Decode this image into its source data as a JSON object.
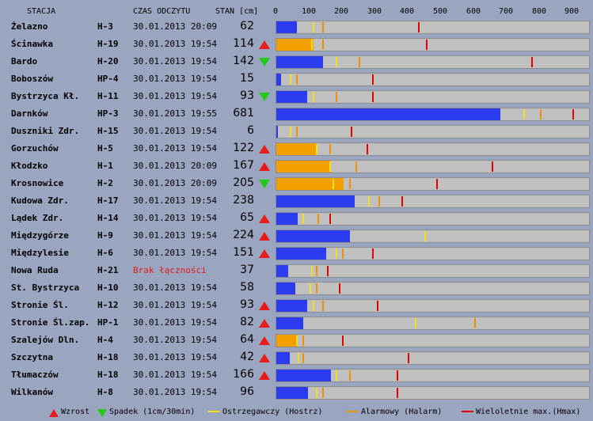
{
  "header": {
    "station": "STACJA",
    "read_time": "CZAS ODCZYTU",
    "level": "STAN [cm]",
    "scale_ticks": [
      0,
      100,
      200,
      300,
      400,
      500,
      600,
      700,
      800,
      900
    ]
  },
  "scale_max": 940,
  "colors": {
    "normal": "#2b3cf0",
    "warning_fill": "#f2a000",
    "warning_marker": "#f0e020",
    "alarm_marker": "#f09000",
    "max_marker": "#e00000",
    "rise": "#e81c1c",
    "fall": "#22c81a"
  },
  "stations": [
    {
      "name": "Żelazno",
      "code": "H-3",
      "time": "30.01.2013 20:09",
      "level": 62,
      "trend": "none",
      "warn": 110,
      "alarm": 140,
      "max": 430,
      "state": "normal"
    },
    {
      "name": "Ścinawka",
      "code": "H-19",
      "time": "30.01.2013 19:54",
      "level": 114,
      "trend": "up",
      "warn": 105,
      "alarm": 140,
      "max": 455,
      "state": "warning"
    },
    {
      "name": "Bardo",
      "code": "H-20",
      "time": "30.01.2013 19:54",
      "level": 142,
      "trend": "down",
      "warn": 180,
      "alarm": 250,
      "max": 775,
      "state": "normal"
    },
    {
      "name": "Boboszów",
      "code": "HP-4",
      "time": "30.01.2013 19:54",
      "level": 15,
      "trend": "none",
      "warn": 40,
      "alarm": 60,
      "max": 290,
      "state": "normal"
    },
    {
      "name": "Bystrzyca Kł.",
      "code": "H-11",
      "time": "30.01.2013 19:54",
      "level": 93,
      "trend": "down",
      "warn": 110,
      "alarm": 180,
      "max": 290,
      "state": "normal"
    },
    {
      "name": "Darnków",
      "code": "HP-3",
      "time": "30.01.2013 19:55",
      "level": 681,
      "trend": "none",
      "warn": 750,
      "alarm": 800,
      "max": 900,
      "state": "normal"
    },
    {
      "name": "Duszniki Zdr.",
      "code": "H-15",
      "time": "30.01.2013 19:54",
      "level": 6,
      "trend": "none",
      "warn": 40,
      "alarm": 60,
      "max": 225,
      "state": "normal"
    },
    {
      "name": "Gorzuchów",
      "code": "H-5",
      "time": "30.01.2013 19:54",
      "level": 122,
      "trend": "up",
      "warn": 120,
      "alarm": 160,
      "max": 275,
      "state": "warning"
    },
    {
      "name": "Kłodzko",
      "code": "H-1",
      "time": "30.01.2013 20:09",
      "level": 167,
      "trend": "up",
      "warn": 160,
      "alarm": 240,
      "max": 655,
      "state": "warning"
    },
    {
      "name": "Krosnowice",
      "code": "H-2",
      "time": "30.01.2013 20:09",
      "level": 205,
      "trend": "down",
      "warn": 170,
      "alarm": 220,
      "max": 485,
      "state": "warning"
    },
    {
      "name": "Kudowa Zdr.",
      "code": "H-17",
      "time": "30.01.2013 19:54",
      "level": 238,
      "trend": "none",
      "warn": 280,
      "alarm": 310,
      "max": 380,
      "state": "normal"
    },
    {
      "name": "Lądek Zdr.",
      "code": "H-14",
      "time": "30.01.2013 19:54",
      "level": 65,
      "trend": "up",
      "warn": 80,
      "alarm": 125,
      "max": 160,
      "state": "normal"
    },
    {
      "name": "Międzygórze",
      "code": "H-9",
      "time": "30.01.2013 19:54",
      "level": 224,
      "trend": "up",
      "warn": 450,
      "alarm": null,
      "max": null,
      "state": "normal"
    },
    {
      "name": "Międzylesie",
      "code": "H-6",
      "time": "30.01.2013 19:54",
      "level": 151,
      "trend": "up",
      "warn": 180,
      "alarm": 200,
      "max": 290,
      "state": "normal"
    },
    {
      "name": "Nowa Ruda",
      "code": "H-21",
      "time": "Brak łączności",
      "level": 37,
      "trend": "none",
      "warn": 105,
      "alarm": 120,
      "max": 155,
      "state": "normal"
    },
    {
      "name": "St. Bystrzyca",
      "code": "H-10",
      "time": "30.01.2013 19:54",
      "level": 58,
      "trend": "none",
      "warn": 100,
      "alarm": 120,
      "max": 190,
      "state": "normal"
    },
    {
      "name": "Stronie Śl.",
      "code": "H-12",
      "time": "30.01.2013 19:54",
      "level": 93,
      "trend": "up",
      "warn": 110,
      "alarm": 140,
      "max": 305,
      "state": "normal"
    },
    {
      "name": "Stronie Śl.zap.",
      "code": "HP-1",
      "time": "30.01.2013 19:54",
      "level": 82,
      "trend": "up",
      "warn": 420,
      "alarm": 600,
      "max": null,
      "state": "normal"
    },
    {
      "name": "Szalejów Dln.",
      "code": "H-4",
      "time": "30.01.2013 19:54",
      "level": 64,
      "trend": "up",
      "warn": 60,
      "alarm": 80,
      "max": 200,
      "state": "warning"
    },
    {
      "name": "Szczytna",
      "code": "H-18",
      "time": "30.01.2013 19:54",
      "level": 42,
      "trend": "up",
      "warn": 65,
      "alarm": 80,
      "max": 400,
      "state": "normal"
    },
    {
      "name": "Tłumaczów",
      "code": "H-18",
      "time": "30.01.2013 19:54",
      "level": 166,
      "trend": "up",
      "warn": 180,
      "alarm": 220,
      "max": 365,
      "state": "normal"
    },
    {
      "name": "Wilkanów",
      "code": "H-8",
      "time": "30.01.2013 19:54",
      "level": 96,
      "trend": "none",
      "warn": 120,
      "alarm": 140,
      "max": 365,
      "state": "normal"
    }
  ],
  "legend": {
    "rise": "Wzrost",
    "fall": "Spadek (1cm/30min)",
    "warning": "Ostrzegawczy (Hostrz)",
    "alarm": "Alarmowy (Halarm)",
    "max": "Wieloletnie max.(Hmax)"
  }
}
